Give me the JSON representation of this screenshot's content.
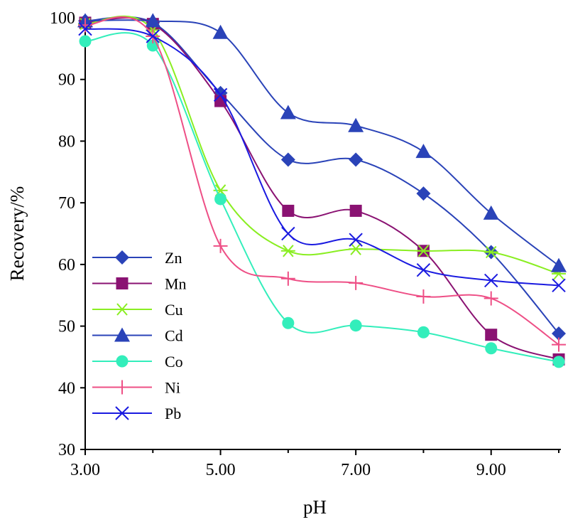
{
  "chart_data": {
    "type": "line",
    "xlabel": "pH",
    "ylabel": "Recovery/%",
    "xlim": [
      3,
      10
    ],
    "ylim": [
      30,
      100
    ],
    "x_ticks": [
      3,
      5,
      7,
      9
    ],
    "x_tick_labels": [
      "3.00",
      "5.00",
      "7.00",
      "9.00"
    ],
    "y_ticks": [
      30,
      40,
      50,
      60,
      70,
      80,
      90,
      100
    ],
    "y_tick_labels": [
      "30",
      "40",
      "50",
      "60",
      "70",
      "80",
      "90",
      "100"
    ],
    "x_minor_ticks": [
      4,
      6,
      8,
      10
    ],
    "grid": false,
    "legend_position": "left",
    "x": [
      3,
      4,
      5,
      6,
      7,
      8,
      9,
      10
    ],
    "series": [
      {
        "name": "Zn",
        "marker": "diamond",
        "color": "#2a43b8",
        "values": [
          99.5,
          99.2,
          87.8,
          77.0,
          77.0,
          71.5,
          62.0,
          48.8
        ]
      },
      {
        "name": "Mn",
        "marker": "square",
        "color": "#8a1272",
        "values": [
          99.2,
          99.0,
          86.5,
          68.7,
          68.7,
          62.2,
          48.6,
          44.6
        ]
      },
      {
        "name": "Cu",
        "marker": "asterisk",
        "color": "#8aee22",
        "values": [
          99.0,
          98.0,
          72.0,
          62.2,
          62.5,
          62.2,
          62.0,
          58.5
        ]
      },
      {
        "name": "Cd",
        "marker": "triangle",
        "color": "#2a43b8",
        "values": [
          99.5,
          99.5,
          97.6,
          84.6,
          82.5,
          78.3,
          68.3,
          59.8
        ]
      },
      {
        "name": "Co",
        "marker": "circle",
        "color": "#33eebb",
        "values": [
          96.2,
          95.5,
          70.6,
          50.5,
          50.1,
          49.0,
          46.4,
          44.2
        ]
      },
      {
        "name": "Ni",
        "marker": "plus",
        "color": "#ee4f86",
        "values": [
          98.8,
          97.0,
          63.0,
          57.7,
          57.0,
          54.8,
          54.5,
          47.0
        ]
      },
      {
        "name": "Pb",
        "marker": "x",
        "color": "#1a1ae0",
        "values": [
          98.2,
          97.0,
          87.5,
          65.0,
          64.0,
          59.1,
          57.4,
          56.6
        ]
      }
    ]
  }
}
